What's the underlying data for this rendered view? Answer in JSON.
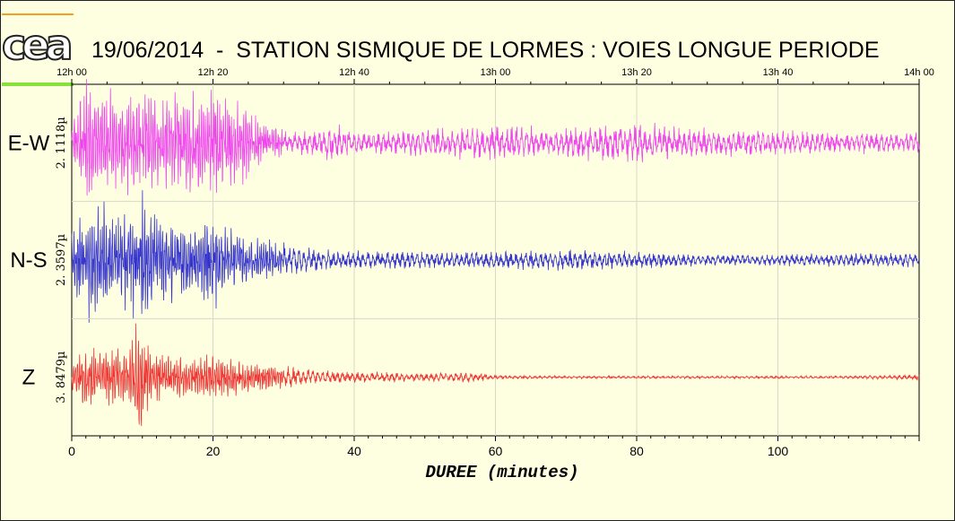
{
  "title": "19/06/2014  -  STATION SISMIQUE DE LORMES : VOIES LONGUE PERIODE",
  "logo_text": "cea",
  "colors": {
    "background": "#fefee0",
    "ew_trace": "#ee44ee",
    "ns_trace": "#3333cc",
    "z_trace": "#ee3333",
    "logo_top_bar": "#f0a020",
    "logo_bottom_bar": "#88e03a"
  },
  "chart_data": {
    "type": "line",
    "xlabel": "DUREE (minutes)",
    "xlim": [
      0,
      120
    ],
    "x_ticks": [
      0,
      20,
      40,
      60,
      80,
      100
    ],
    "time_ticks": [
      "12h 00",
      "12h 20",
      "12h 40",
      "13h 00",
      "13h 20",
      "13h 40",
      "14h 00"
    ],
    "grid": true,
    "series": [
      {
        "name": "E-W",
        "scale": "2. 1118µ",
        "color": "#ee44ee",
        "envelope_minutes": [
          0,
          2,
          5,
          10,
          15,
          20,
          22,
          24,
          25,
          28,
          30,
          35,
          38,
          40,
          50,
          60,
          70,
          80,
          90,
          100,
          110,
          120
        ],
        "envelope_amplitude": [
          0.3,
          0.95,
          0.75,
          0.75,
          0.7,
          0.9,
          0.7,
          0.6,
          0.65,
          0.25,
          0.2,
          0.2,
          0.28,
          0.15,
          0.2,
          0.25,
          0.22,
          0.3,
          0.2,
          0.18,
          0.15,
          0.15
        ]
      },
      {
        "name": "N-S",
        "scale": "2. 3597µ",
        "color": "#3333cc",
        "envelope_minutes": [
          0,
          2,
          4,
          6,
          8,
          10,
          12,
          15,
          18,
          20,
          22,
          24,
          26,
          30,
          35,
          40,
          50,
          60,
          70,
          80,
          90,
          100,
          110,
          120
        ],
        "envelope_amplitude": [
          0.4,
          0.85,
          0.9,
          0.7,
          0.8,
          0.95,
          0.7,
          0.6,
          0.5,
          0.7,
          0.5,
          0.35,
          0.3,
          0.25,
          0.15,
          0.13,
          0.12,
          0.13,
          0.15,
          0.12,
          0.08,
          0.08,
          0.1,
          0.1
        ]
      },
      {
        "name": "Z",
        "scale": "3. 8479µ",
        "color": "#ee3333",
        "envelope_minutes": [
          0,
          2,
          5,
          8,
          9.5,
          11,
          13,
          16,
          20,
          22,
          25,
          30,
          35,
          40,
          50,
          56,
          60,
          70,
          80,
          90,
          100,
          110,
          120
        ],
        "envelope_amplitude": [
          0.3,
          0.45,
          0.4,
          0.5,
          0.95,
          0.5,
          0.35,
          0.3,
          0.35,
          0.3,
          0.22,
          0.18,
          0.1,
          0.08,
          0.06,
          0.08,
          0.03,
          0.02,
          0.02,
          0.02,
          0.02,
          0.02,
          0.04
        ]
      }
    ]
  }
}
